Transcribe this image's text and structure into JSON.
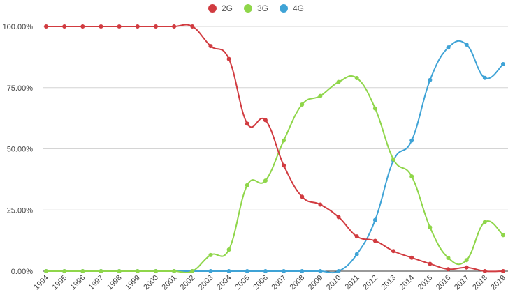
{
  "chart_data": {
    "type": "line",
    "categories": [
      "1994",
      "1995",
      "1996",
      "1997",
      "1998",
      "1999",
      "2000",
      "2001",
      "2002",
      "2003",
      "2004",
      "2005",
      "2006",
      "2007",
      "2008",
      "2009",
      "2010",
      "2011",
      "2012",
      "2013",
      "2014",
      "2015",
      "2016",
      "2017",
      "2018",
      "2019"
    ],
    "series": [
      {
        "name": "2G",
        "color": "#d13b40",
        "values": [
          100,
          100,
          100,
          100,
          100,
          100,
          100,
          100,
          100,
          92.0,
          86.7,
          60.3,
          61.7,
          43.2,
          30.4,
          27.2,
          22.1,
          14.2,
          12.4,
          8.2,
          5.5,
          3.0,
          0.8,
          1.5,
          0.0,
          0.0
        ]
      },
      {
        "name": "3G",
        "color": "#8fd64a",
        "values": [
          0,
          0,
          0,
          0,
          0,
          0,
          0,
          0,
          0,
          6.6,
          8.8,
          35.1,
          37.0,
          53.4,
          68.1,
          71.6,
          77.3,
          78.9,
          66.5,
          45.7,
          38.7,
          17.9,
          5.4,
          4.5,
          20.1,
          14.7
        ]
      },
      {
        "name": "4G",
        "color": "#3fa3d6",
        "values": [
          0,
          0,
          0,
          0,
          0,
          0,
          0,
          0,
          0,
          0,
          0,
          0,
          0,
          0,
          0,
          0,
          0,
          6.9,
          20.9,
          45.2,
          53.4,
          78.1,
          91.4,
          92.6,
          79.0,
          84.6
        ]
      }
    ],
    "y_ticks": [
      "0.00%",
      "25.00%",
      "50.00%",
      "75.00%",
      "100.00%"
    ],
    "ylim": [
      0,
      100
    ],
    "grid": true,
    "legend_position": "top-center",
    "title": "",
    "xlabel": "",
    "ylabel": ""
  }
}
